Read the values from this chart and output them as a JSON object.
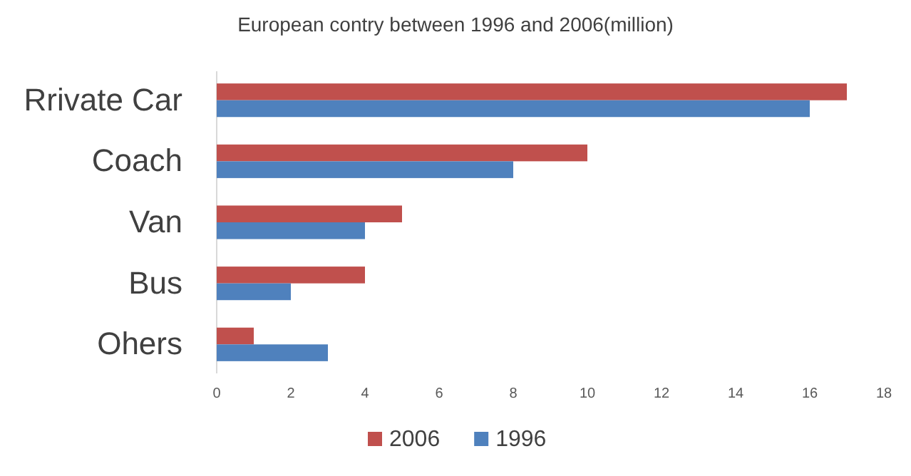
{
  "chart_data": {
    "type": "bar",
    "orientation": "horizontal",
    "title": "European contry between 1996 and 2006(million)",
    "categories": [
      "Rrivate Car",
      "Coach",
      "Van",
      "Bus",
      "Ohers"
    ],
    "series": [
      {
        "name": "2006",
        "color": "#c0504d",
        "values": [
          17,
          10,
          5,
          4,
          1
        ]
      },
      {
        "name": "1996",
        "color": "#4f81bd",
        "values": [
          16,
          8,
          4,
          2,
          3
        ]
      }
    ],
    "xlim": [
      0,
      18
    ],
    "xticks": [
      0,
      2,
      4,
      6,
      8,
      10,
      12,
      14,
      16,
      18
    ],
    "grid": false,
    "legend": "bottom"
  }
}
